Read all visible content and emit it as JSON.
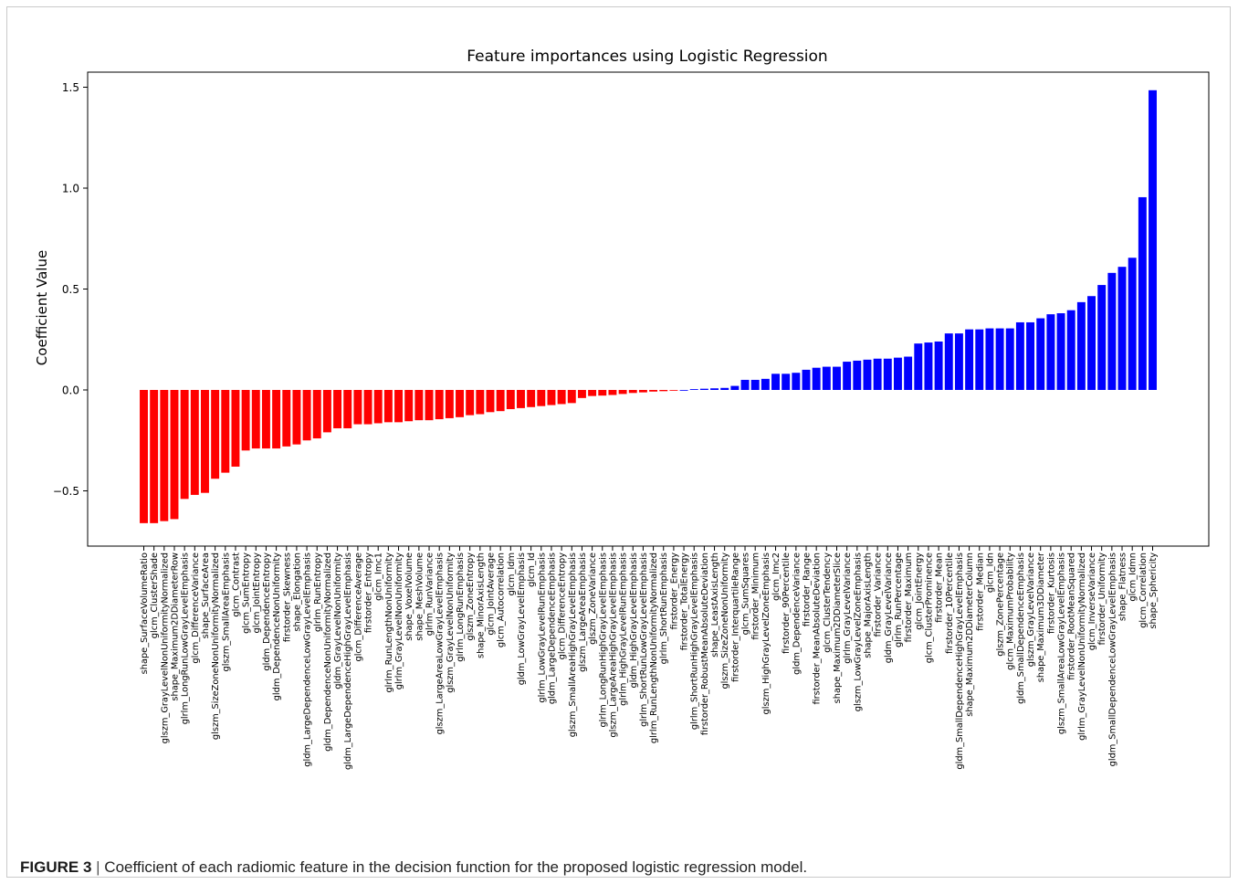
{
  "chart_data": {
    "type": "bar",
    "title": "Feature importances using Logistic Regression",
    "xlabel": "",
    "ylabel": "Coefficient Value",
    "ylim": [
      -0.77,
      1.5
    ],
    "yticks": [
      -0.5,
      0.0,
      0.5,
      1.0,
      1.5
    ],
    "ytick_labels": [
      "−0.5",
      "0.0",
      "0.5",
      "1.0",
      "1.5"
    ],
    "grid": false,
    "negative_color": "#ff0000",
    "positive_color": "#0000ff",
    "categories": [
      "shape_SurfaceVolumeRatio",
      "glcm_ClusterShade",
      "glszm_GrayLevelNonUniformityNormalized",
      "shape_Maximum2DDiameterRow",
      "glrlm_LongRunLowGrayLevelEmphasis",
      "glcm_DifferenceVariance",
      "shape_SurfaceArea",
      "glszm_SizeZoneNonUniformityNormalized",
      "glszm_SmallAreaEmphasis",
      "glcm_Contrast",
      "glcm_SumEntropy",
      "glcm_JointEntropy",
      "gldm_DependenceEntropy",
      "gldm_DependenceNonUniformity",
      "firstorder_Skewness",
      "shape_Elongation",
      "gldm_LargeDependenceLowGrayLevelEmphasis",
      "glrlm_RunEntropy",
      "gldm_DependenceNonUniformityNormalized",
      "gldm_GrayLevelNonUniformity",
      "gldm_LargeDependenceHighGrayLevelEmphasis",
      "glcm_DifferenceAverage",
      "firstorder_Entropy",
      "glcm_Imc1",
      "glrlm_RunLengthNonUniformity",
      "glrlm_GrayLevelNonUniformity",
      "shape_VoxelVolume",
      "shape_MeshVolume",
      "glrlm_RunVariance",
      "glszm_LargeAreaLowGrayLevelEmphasis",
      "glszm_GrayLevelNonUniformity",
      "glrlm_LongRunEmphasis",
      "glszm_ZoneEntropy",
      "shape_MinorAxisLength",
      "glcm_JointAverage",
      "glcm_Autocorrelation",
      "glcm_Idm",
      "gldm_LowGrayLevelEmphasis",
      "glcm_Id",
      "glrlm_LowGrayLevelRunEmphasis",
      "gldm_LargeDependenceEmphasis",
      "glcm_DifferenceEntropy",
      "glszm_SmallAreaHighGrayLevelEmphasis",
      "glszm_LargeAreaEmphasis",
      "glszm_ZoneVariance",
      "glrlm_LongRunHighGrayLevelEmphasis",
      "glszm_LargeAreaHighGrayLevelEmphasis",
      "glrlm_HighGrayLevelRunEmphasis",
      "gldm_HighGrayLevelEmphasis",
      "glrlm_ShortRunLowGrayLevelEmphasis",
      "glrlm_RunLengthNonUniformityNormalized",
      "glrlm_ShortRunEmphasis",
      "firstorder_Energy",
      "firstorder_TotalEnergy",
      "glrlm_ShortRunHighGrayLevelEmphasis",
      "firstorder_RobustMeanAbsoluteDeviation",
      "shape_LeastAxisLength",
      "glszm_SizeZoneNonUniformity",
      "firstorder_InterquartileRange",
      "glcm_SumSquares",
      "firstorder_Minimum",
      "glszm_HighGrayLevelZoneEmphasis",
      "glcm_Imc2",
      "firstorder_90Percentile",
      "gldm_DependenceVariance",
      "firstorder_Range",
      "firstorder_MeanAbsoluteDeviation",
      "glcm_ClusterTendency",
      "shape_Maximum2DDiameterSlice",
      "glrlm_GrayLevelVariance",
      "glszm_LowGrayLevelZoneEmphasis",
      "shape_MajorAxisLength",
      "firstorder_Variance",
      "gldm_GrayLevelVariance",
      "glrlm_RunPercentage",
      "firstorder_Maximum",
      "glcm_JointEnergy",
      "glcm_ClusterProminence",
      "firstorder_Mean",
      "firstorder_10Percentile",
      "gldm_SmallDependenceHighGrayLevelEmphasis",
      "shape_Maximum2DDiameterColumn",
      "firstorder_Median",
      "glcm_Idn",
      "glszm_ZonePercentage",
      "glcm_MaximumProbability",
      "gldm_SmallDependenceEmphasis",
      "glszm_GrayLevelVariance",
      "shape_Maximum3DDiameter",
      "firstorder_Kurtosis",
      "glszm_SmallAreaLowGrayLevelEmphasis",
      "firstorder_RootMeanSquared",
      "glrlm_GrayLevelNonUniformityNormalized",
      "glcm_InverseVariance",
      "firstorder_Uniformity",
      "gldm_SmallDependenceLowGrayLevelEmphasis",
      "shape_Flatness",
      "glcm_Idmn",
      "glcm_Correlation",
      "shape_Sphericity"
    ],
    "values": [
      -0.66,
      -0.66,
      -0.65,
      -0.64,
      -0.54,
      -0.52,
      -0.51,
      -0.44,
      -0.41,
      -0.38,
      -0.3,
      -0.29,
      -0.29,
      -0.29,
      -0.28,
      -0.27,
      -0.25,
      -0.24,
      -0.21,
      -0.19,
      -0.19,
      -0.17,
      -0.17,
      -0.165,
      -0.16,
      -0.16,
      -0.155,
      -0.15,
      -0.15,
      -0.145,
      -0.14,
      -0.135,
      -0.125,
      -0.12,
      -0.11,
      -0.105,
      -0.095,
      -0.09,
      -0.085,
      -0.08,
      -0.075,
      -0.07,
      -0.065,
      -0.04,
      -0.03,
      -0.028,
      -0.025,
      -0.02,
      -0.015,
      -0.012,
      -0.008,
      -0.006,
      -0.003,
      0.0,
      0.004,
      0.006,
      0.008,
      0.01,
      0.02,
      0.05,
      0.05,
      0.055,
      0.08,
      0.08,
      0.085,
      0.1,
      0.11,
      0.115,
      0.115,
      0.14,
      0.145,
      0.15,
      0.155,
      0.155,
      0.16,
      0.165,
      0.23,
      0.235,
      0.24,
      0.28,
      0.28,
      0.3,
      0.3,
      0.305,
      0.305,
      0.305,
      0.335,
      0.335,
      0.355,
      0.375,
      0.38,
      0.395,
      0.435,
      0.465,
      0.52,
      0.58,
      0.61,
      0.655,
      0.955,
      1.485
    ]
  },
  "caption": {
    "label": "FIGURE 3",
    "separator": "|",
    "text": "Coefficient of each radiomic feature in the decision function for the proposed logistic regression model."
  }
}
